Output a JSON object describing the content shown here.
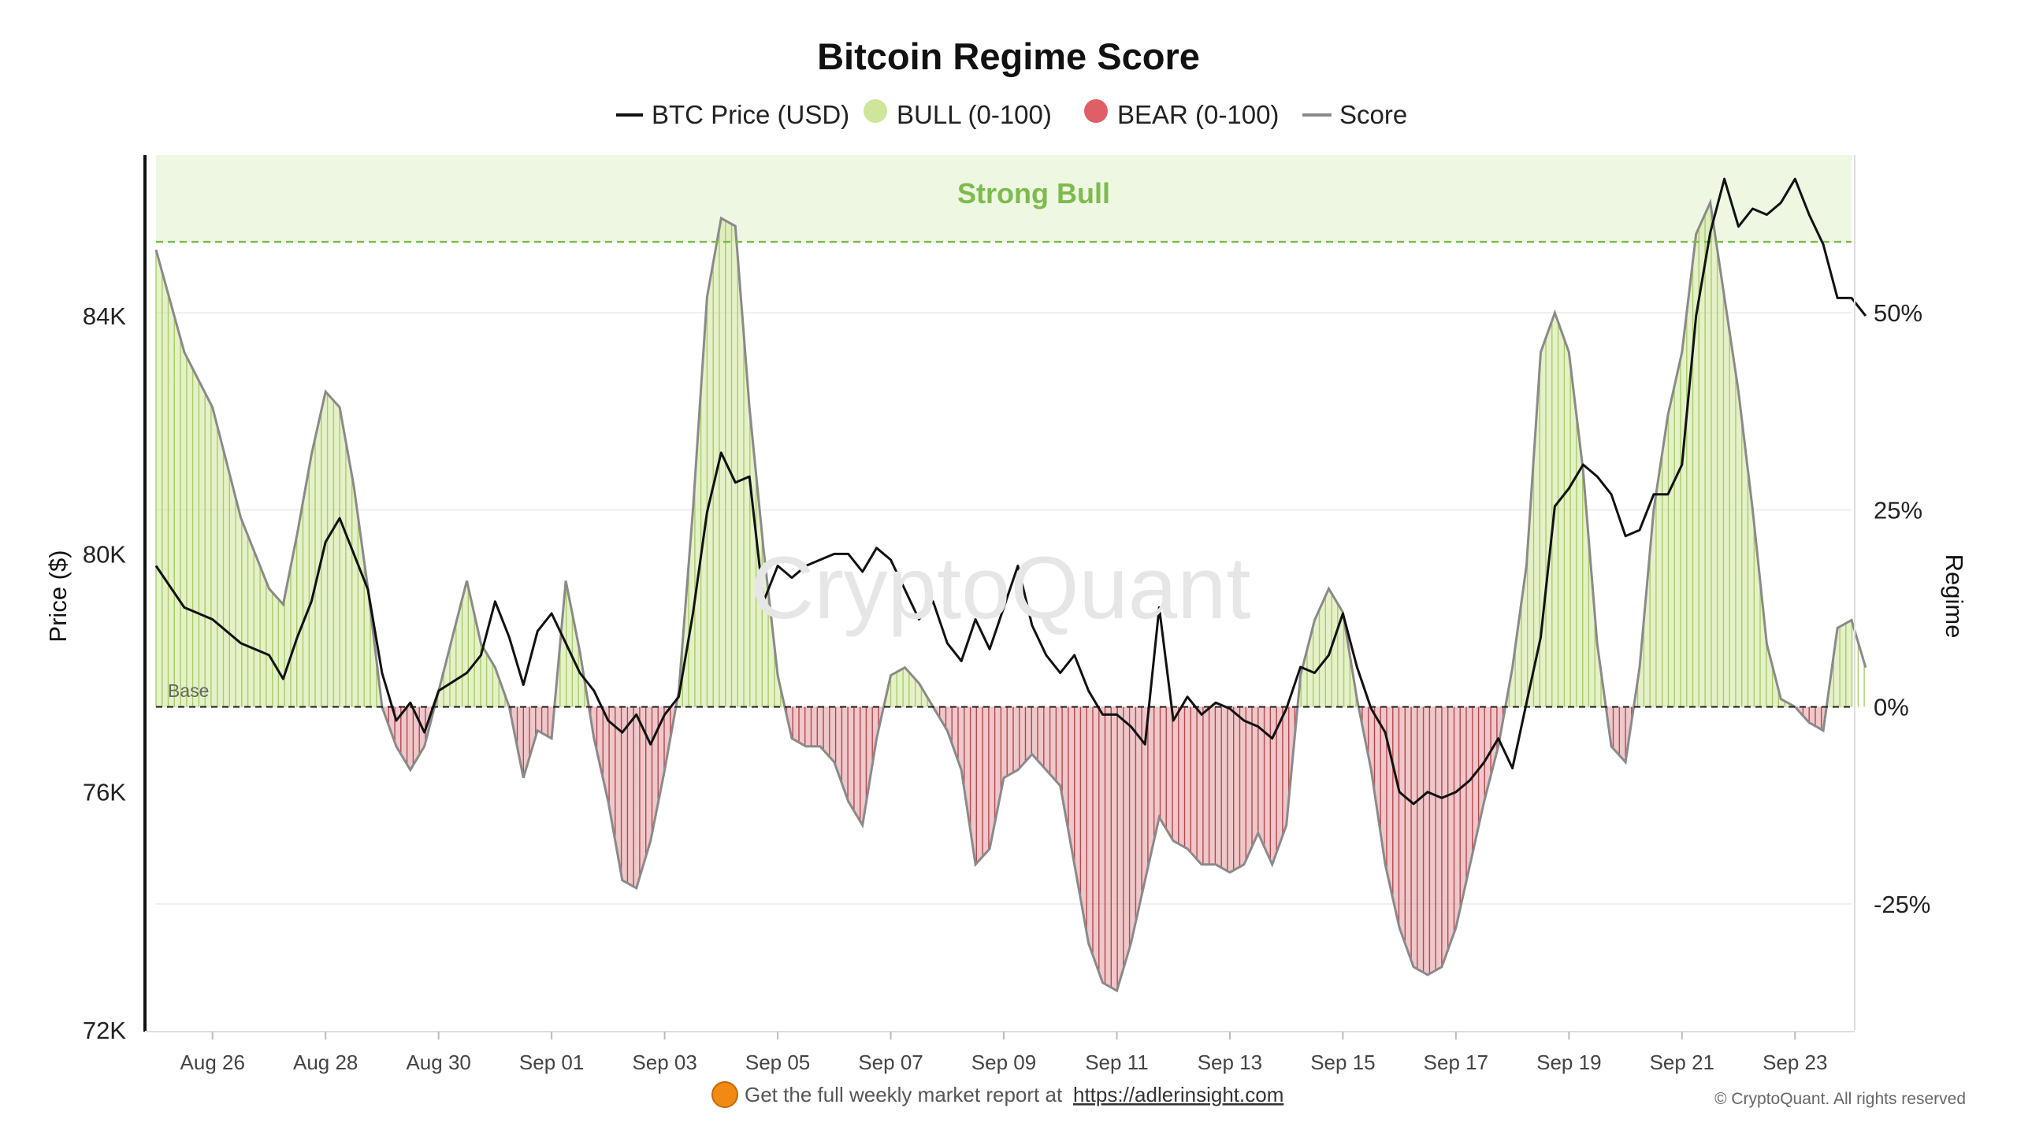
{
  "colors": {
    "price": "#111111",
    "bull_fill": "#cfe59b",
    "bull_line": "#a9cd6a",
    "bear_fill": "#d9868a",
    "bear_line": "#b8474d",
    "score": "#8a8a8a",
    "strong_bull_band": "#eef7e2",
    "strong_bull_line": "#7dbb4c",
    "legend_bull": "#cfe59b",
    "legend_bear": "#e05e66"
  },
  "footer": {
    "prefix": "Get the full weekly market report at ",
    "link": "https://adlerinsight.com",
    "icon": "orange-circle-icon"
  },
  "copyright": "© CryptoQuant. All rights reserved",
  "watermark": "CryptoQuant",
  "chart_data": {
    "type": "line",
    "title": "Bitcoin Regime Score",
    "legend": [
      "BTC Price (USD)",
      "BULL (0-100)",
      "BEAR (0-100)",
      "Score"
    ],
    "legend_placement": "top-center",
    "ylabel_left": "Price ($)",
    "ylabel_right": "Regime",
    "ylim_left": [
      72000,
      86700
    ],
    "ylim_right": [
      -41,
      70
    ],
    "yticks_left": [
      "72K",
      "76K",
      "80K",
      "84K"
    ],
    "yticks_right": [
      "-25%",
      "0%",
      "25%",
      "50%"
    ],
    "xticks": [
      "Aug 26",
      "Aug 28",
      "Aug 30",
      "Sep 01",
      "Sep 03",
      "Sep 05",
      "Sep 07",
      "Sep 09",
      "Sep 11",
      "Sep 13",
      "Sep 15",
      "Sep 17",
      "Sep 19",
      "Sep 21",
      "Sep 23"
    ],
    "x_start": "Aug 25",
    "x_end": "Sep 24",
    "annotations": {
      "strong_bull_label": "Strong Bull",
      "strong_bull_threshold": 59,
      "base_label": "Base",
      "base_value": 0
    },
    "grid": true,
    "series": [
      {
        "name": "BTC Price (USD)",
        "axis": "left",
        "points": [
          [
            "Aug 25 00:00",
            79800
          ],
          [
            "Aug 25 12:00",
            79100
          ],
          [
            "Aug 26 00:00",
            78900
          ],
          [
            "Aug 26 12:00",
            78500
          ],
          [
            "Aug 27 00:00",
            78300
          ],
          [
            "Aug 27 06:00",
            77900
          ],
          [
            "Aug 27 12:00",
            78600
          ],
          [
            "Aug 27 18:00",
            79200
          ],
          [
            "Aug 28 00:00",
            80200
          ],
          [
            "Aug 28 06:00",
            80600
          ],
          [
            "Aug 28 12:00",
            80000
          ],
          [
            "Aug 28 18:00",
            79400
          ],
          [
            "Aug 29 00:00",
            78000
          ],
          [
            "Aug 29 06:00",
            77200
          ],
          [
            "Aug 29 12:00",
            77500
          ],
          [
            "Aug 29 18:00",
            77000
          ],
          [
            "Aug 30 00:00",
            77700
          ],
          [
            "Aug 30 12:00",
            78000
          ],
          [
            "Aug 30 18:00",
            78300
          ],
          [
            "Aug 31 00:00",
            79200
          ],
          [
            "Aug 31 06:00",
            78600
          ],
          [
            "Aug 31 12:00",
            77800
          ],
          [
            "Aug 31 18:00",
            78700
          ],
          [
            "Sep 01 00:00",
            79000
          ],
          [
            "Sep 01 06:00",
            78500
          ],
          [
            "Sep 01 12:00",
            78000
          ],
          [
            "Sep 01 18:00",
            77700
          ],
          [
            "Sep 02 00:00",
            77200
          ],
          [
            "Sep 02 06:00",
            77000
          ],
          [
            "Sep 02 12:00",
            77300
          ],
          [
            "Sep 02 18:00",
            76800
          ],
          [
            "Sep 03 00:00",
            77300
          ],
          [
            "Sep 03 06:00",
            77600
          ],
          [
            "Sep 03 12:00",
            79000
          ],
          [
            "Sep 03 18:00",
            80700
          ],
          [
            "Sep 04 00:00",
            81700
          ],
          [
            "Sep 04 06:00",
            81200
          ],
          [
            "Sep 04 12:00",
            81300
          ],
          [
            "Sep 04 18:00",
            79200
          ],
          [
            "Sep 05 00:00",
            79800
          ],
          [
            "Sep 05 06:00",
            79600
          ],
          [
            "Sep 05 12:00",
            79800
          ],
          [
            "Sep 05 18:00",
            79900
          ],
          [
            "Sep 06 00:00",
            80000
          ],
          [
            "Sep 06 06:00",
            80000
          ],
          [
            "Sep 06 12:00",
            79700
          ],
          [
            "Sep 06 18:00",
            80100
          ],
          [
            "Sep 07 00:00",
            79900
          ],
          [
            "Sep 07 06:00",
            79400
          ],
          [
            "Sep 07 12:00",
            78900
          ],
          [
            "Sep 07 18:00",
            79200
          ],
          [
            "Sep 08 00:00",
            78500
          ],
          [
            "Sep 08 06:00",
            78200
          ],
          [
            "Sep 08 12:00",
            78900
          ],
          [
            "Sep 08 18:00",
            78400
          ],
          [
            "Sep 09 00:00",
            79100
          ],
          [
            "Sep 09 06:00",
            79800
          ],
          [
            "Sep 09 12:00",
            78800
          ],
          [
            "Sep 09 18:00",
            78300
          ],
          [
            "Sep 10 00:00",
            78000
          ],
          [
            "Sep 10 06:00",
            78300
          ],
          [
            "Sep 10 12:00",
            77700
          ],
          [
            "Sep 10 18:00",
            77300
          ],
          [
            "Sep 11 00:00",
            77300
          ],
          [
            "Sep 11 06:00",
            77100
          ],
          [
            "Sep 11 12:00",
            76800
          ],
          [
            "Sep 11 18:00",
            79100
          ],
          [
            "Sep 12 00:00",
            77200
          ],
          [
            "Sep 12 06:00",
            77600
          ],
          [
            "Sep 12 12:00",
            77300
          ],
          [
            "Sep 12 18:00",
            77500
          ],
          [
            "Sep 13 00:00",
            77400
          ],
          [
            "Sep 13 06:00",
            77200
          ],
          [
            "Sep 13 12:00",
            77100
          ],
          [
            "Sep 13 18:00",
            76900
          ],
          [
            "Sep 14 00:00",
            77400
          ],
          [
            "Sep 14 06:00",
            78100
          ],
          [
            "Sep 14 12:00",
            78000
          ],
          [
            "Sep 14 18:00",
            78300
          ],
          [
            "Sep 15 00:00",
            79000
          ],
          [
            "Sep 15 06:00",
            78100
          ],
          [
            "Sep 15 12:00",
            77400
          ],
          [
            "Sep 15 18:00",
            77000
          ],
          [
            "Sep 16 00:00",
            76000
          ],
          [
            "Sep 16 06:00",
            75800
          ],
          [
            "Sep 16 12:00",
            76000
          ],
          [
            "Sep 16 18:00",
            75900
          ],
          [
            "Sep 17 00:00",
            76000
          ],
          [
            "Sep 17 06:00",
            76200
          ],
          [
            "Sep 17 12:00",
            76500
          ],
          [
            "Sep 17 18:00",
            76900
          ],
          [
            "Sep 18 00:00",
            76400
          ],
          [
            "Sep 18 06:00",
            77500
          ],
          [
            "Sep 18 12:00",
            78600
          ],
          [
            "Sep 18 18:00",
            80800
          ],
          [
            "Sep 19 00:00",
            81100
          ],
          [
            "Sep 19 06:00",
            81500
          ],
          [
            "Sep 19 12:00",
            81300
          ],
          [
            "Sep 19 18:00",
            81000
          ],
          [
            "Sep 20 00:00",
            80300
          ],
          [
            "Sep 20 06:00",
            80400
          ],
          [
            "Sep 20 12:00",
            81000
          ],
          [
            "Sep 20 18:00",
            81000
          ],
          [
            "Sep 21 00:00",
            81500
          ],
          [
            "Sep 21 06:00",
            84000
          ],
          [
            "Sep 21 12:00",
            85400
          ],
          [
            "Sep 21 18:00",
            86300
          ],
          [
            "Sep 22 00:00",
            85500
          ],
          [
            "Sep 22 06:00",
            85800
          ],
          [
            "Sep 22 12:00",
            85700
          ],
          [
            "Sep 22 18:00",
            85900
          ],
          [
            "Sep 23 00:00",
            86300
          ],
          [
            "Sep 23 06:00",
            85700
          ],
          [
            "Sep 23 12:00",
            85200
          ],
          [
            "Sep 23 18:00",
            84300
          ],
          [
            "Sep 24 00:00",
            84300
          ],
          [
            "Sep 24 06:00",
            84000
          ]
        ]
      },
      {
        "name": "Score",
        "axis": "right",
        "points": [
          [
            "Aug 25 00:00",
            58
          ],
          [
            "Aug 25 12:00",
            45
          ],
          [
            "Aug 26 00:00",
            38
          ],
          [
            "Aug 26 12:00",
            24
          ],
          [
            "Aug 27 00:00",
            15
          ],
          [
            "Aug 27 06:00",
            13
          ],
          [
            "Aug 27 12:00",
            22
          ],
          [
            "Aug 27 18:00",
            32
          ],
          [
            "Aug 28 00:00",
            40
          ],
          [
            "Aug 28 06:00",
            38
          ],
          [
            "Aug 28 12:00",
            28
          ],
          [
            "Aug 28 18:00",
            15
          ],
          [
            "Aug 29 00:00",
            0
          ],
          [
            "Aug 29 06:00",
            -5
          ],
          [
            "Aug 29 12:00",
            -8
          ],
          [
            "Aug 29 18:00",
            -5
          ],
          [
            "Aug 30 00:00",
            2
          ],
          [
            "Aug 30 12:00",
            16
          ],
          [
            "Aug 30 18:00",
            8
          ],
          [
            "Aug 31 00:00",
            5
          ],
          [
            "Aug 31 06:00",
            0
          ],
          [
            "Aug 31 12:00",
            -9
          ],
          [
            "Aug 31 18:00",
            -3
          ],
          [
            "Sep 01 00:00",
            -4
          ],
          [
            "Sep 01 06:00",
            16
          ],
          [
            "Sep 01 12:00",
            7
          ],
          [
            "Sep 01 18:00",
            -4
          ],
          [
            "Sep 02 00:00",
            -12
          ],
          [
            "Sep 02 06:00",
            -22
          ],
          [
            "Sep 02 12:00",
            -23
          ],
          [
            "Sep 02 18:00",
            -17
          ],
          [
            "Sep 03 00:00",
            -8
          ],
          [
            "Sep 03 06:00",
            2
          ],
          [
            "Sep 03 12:00",
            25
          ],
          [
            "Sep 03 18:00",
            52
          ],
          [
            "Sep 04 00:00",
            62
          ],
          [
            "Sep 04 06:00",
            61
          ],
          [
            "Sep 04 12:00",
            38
          ],
          [
            "Sep 04 18:00",
            20
          ],
          [
            "Sep 05 00:00",
            4
          ],
          [
            "Sep 05 06:00",
            -4
          ],
          [
            "Sep 05 12:00",
            -5
          ],
          [
            "Sep 05 18:00",
            -5
          ],
          [
            "Sep 06 00:00",
            -7
          ],
          [
            "Sep 06 06:00",
            -12
          ],
          [
            "Sep 06 12:00",
            -15
          ],
          [
            "Sep 06 18:00",
            -4
          ],
          [
            "Sep 07 00:00",
            4
          ],
          [
            "Sep 07 06:00",
            5
          ],
          [
            "Sep 07 12:00",
            3
          ],
          [
            "Sep 07 18:00",
            0
          ],
          [
            "Sep 08 00:00",
            -3
          ],
          [
            "Sep 08 06:00",
            -8
          ],
          [
            "Sep 08 12:00",
            -20
          ],
          [
            "Sep 08 18:00",
            -18
          ],
          [
            "Sep 09 00:00",
            -9
          ],
          [
            "Sep 09 06:00",
            -8
          ],
          [
            "Sep 09 12:00",
            -6
          ],
          [
            "Sep 09 18:00",
            -8
          ],
          [
            "Sep 10 00:00",
            -10
          ],
          [
            "Sep 10 06:00",
            -20
          ],
          [
            "Sep 10 12:00",
            -30
          ],
          [
            "Sep 10 18:00",
            -35
          ],
          [
            "Sep 11 00:00",
            -36
          ],
          [
            "Sep 11 06:00",
            -30
          ],
          [
            "Sep 11 12:00",
            -22
          ],
          [
            "Sep 11 18:00",
            -14
          ],
          [
            "Sep 12 00:00",
            -17
          ],
          [
            "Sep 12 06:00",
            -18
          ],
          [
            "Sep 12 12:00",
            -20
          ],
          [
            "Sep 12 18:00",
            -20
          ],
          [
            "Sep 13 00:00",
            -21
          ],
          [
            "Sep 13 06:00",
            -20
          ],
          [
            "Sep 13 12:00",
            -16
          ],
          [
            "Sep 13 18:00",
            -20
          ],
          [
            "Sep 14 00:00",
            -15
          ],
          [
            "Sep 14 06:00",
            4
          ],
          [
            "Sep 14 12:00",
            11
          ],
          [
            "Sep 14 18:00",
            15
          ],
          [
            "Sep 15 00:00",
            12
          ],
          [
            "Sep 15 06:00",
            1
          ],
          [
            "Sep 15 12:00",
            -8
          ],
          [
            "Sep 15 18:00",
            -20
          ],
          [
            "Sep 16 00:00",
            -28
          ],
          [
            "Sep 16 06:00",
            -33
          ],
          [
            "Sep 16 12:00",
            -34
          ],
          [
            "Sep 16 18:00",
            -33
          ],
          [
            "Sep 17 00:00",
            -28
          ],
          [
            "Sep 17 06:00",
            -20
          ],
          [
            "Sep 17 12:00",
            -12
          ],
          [
            "Sep 17 18:00",
            -5
          ],
          [
            "Sep 18 00:00",
            5
          ],
          [
            "Sep 18 06:00",
            18
          ],
          [
            "Sep 18 12:00",
            45
          ],
          [
            "Sep 18 18:00",
            50
          ],
          [
            "Sep 19 00:00",
            45
          ],
          [
            "Sep 19 06:00",
            30
          ],
          [
            "Sep 19 12:00",
            8
          ],
          [
            "Sep 19 18:00",
            -5
          ],
          [
            "Sep 20 00:00",
            -7
          ],
          [
            "Sep 20 06:00",
            5
          ],
          [
            "Sep 20 12:00",
            25
          ],
          [
            "Sep 20 18:00",
            37
          ],
          [
            "Sep 21 00:00",
            45
          ],
          [
            "Sep 21 06:00",
            60
          ],
          [
            "Sep 21 12:00",
            64
          ],
          [
            "Sep 21 18:00",
            52
          ],
          [
            "Sep 22 00:00",
            40
          ],
          [
            "Sep 22 06:00",
            25
          ],
          [
            "Sep 22 12:00",
            8
          ],
          [
            "Sep 22 18:00",
            1
          ],
          [
            "Sep 23 00:00",
            0
          ],
          [
            "Sep 23 06:00",
            -2
          ],
          [
            "Sep 23 12:00",
            -3
          ],
          [
            "Sep 23 18:00",
            10
          ],
          [
            "Sep 24 00:00",
            11
          ],
          [
            "Sep 24 06:00",
            5
          ]
        ]
      }
    ]
  }
}
